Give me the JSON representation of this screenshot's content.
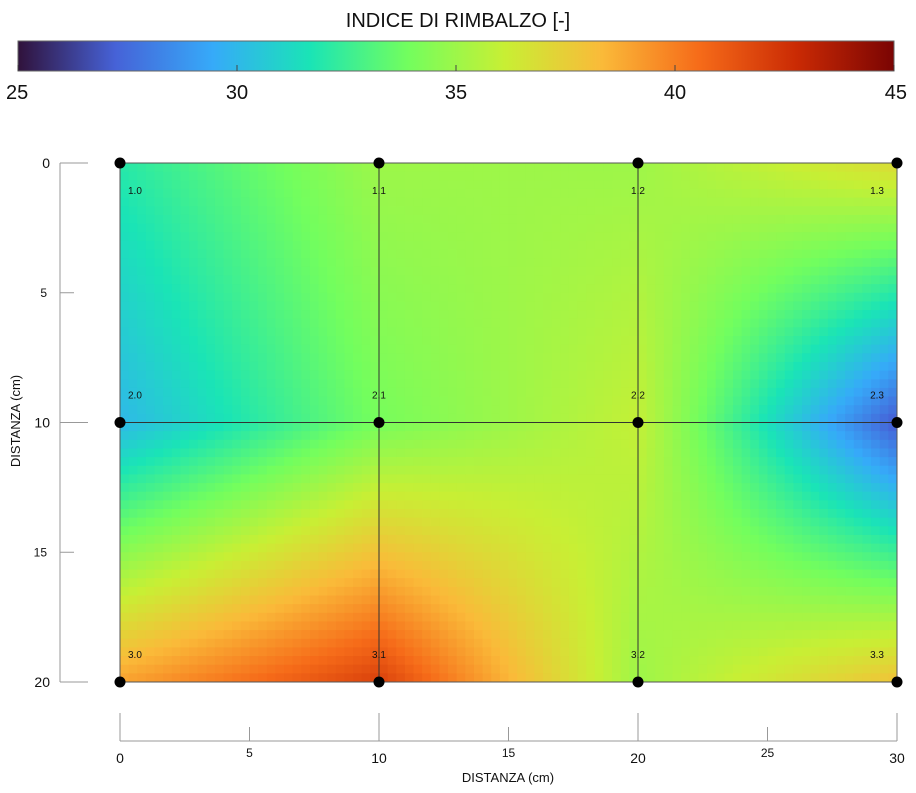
{
  "chart_data": {
    "type": "heatmap",
    "title": "INDICE DI RIMBALZO [-]",
    "colorbar": {
      "min": 25,
      "max": 45,
      "ticks": [
        25,
        30,
        35,
        40,
        45
      ],
      "colormap": "turbo",
      "stops": [
        "#30123b",
        "#4662d7",
        "#36aaf9",
        "#1ae4b6",
        "#72fe5e",
        "#c8ef34",
        "#faba39",
        "#f66b19",
        "#ca2a04",
        "#7a0403"
      ]
    },
    "xlabel": "DISTANZA (cm)",
    "ylabel": "DISTANZA (cm)",
    "xlim": [
      0,
      30
    ],
    "ylim": [
      0,
      20
    ],
    "y_inverted": true,
    "x_ticks": [
      0,
      5,
      10,
      15,
      20,
      25,
      30
    ],
    "x_major_ticks": [
      0,
      10,
      20,
      30
    ],
    "y_ticks": [
      0,
      5,
      10,
      15,
      20
    ],
    "y_major_ticks": [
      0,
      10,
      20
    ],
    "grid": true,
    "grid_x": [
      10,
      20
    ],
    "grid_y": [
      10
    ],
    "points": [
      {
        "label": "1.0",
        "x": 0,
        "y": 0,
        "value": 32
      },
      {
        "label": "1.1",
        "x": 10,
        "y": 0,
        "value": 35
      },
      {
        "label": "1.2",
        "x": 20,
        "y": 0,
        "value": 35
      },
      {
        "label": "1.3",
        "x": 30,
        "y": 0,
        "value": 37
      },
      {
        "label": "2.0",
        "x": 0,
        "y": 10,
        "value": 30
      },
      {
        "label": "2.1",
        "x": 10,
        "y": 10,
        "value": 34
      },
      {
        "label": "2.2",
        "x": 20,
        "y": 10,
        "value": 36
      },
      {
        "label": "2.3",
        "x": 30,
        "y": 10,
        "value": 27
      },
      {
        "label": "3.0",
        "x": 0,
        "y": 20,
        "value": 39
      },
      {
        "label": "3.1",
        "x": 10,
        "y": 20,
        "value": 42
      },
      {
        "label": "3.2",
        "x": 20,
        "y": 20,
        "value": 35
      },
      {
        "label": "3.3",
        "x": 30,
        "y": 20,
        "value": 38
      }
    ]
  }
}
